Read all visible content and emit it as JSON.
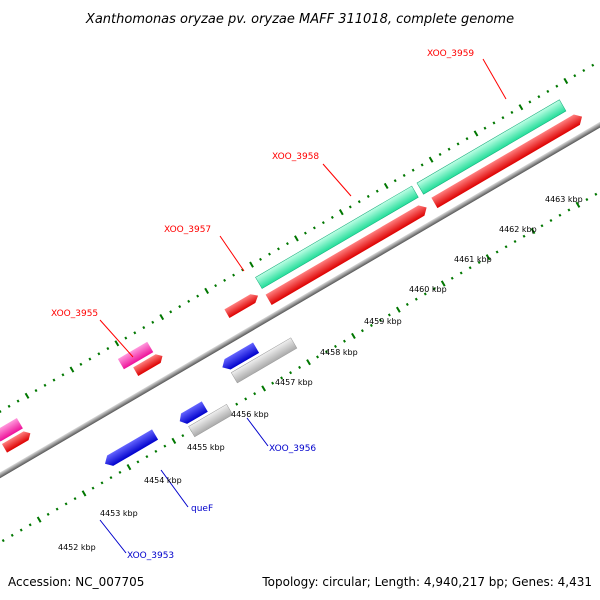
{
  "title": "Xanthomonas oryzae pv. oryzae MAFF 311018, complete genome",
  "footer": {
    "accession": "Accession: NC_007705",
    "topology": "Topology: circular; Length: 4,940,217 bp; Genes: 4,431"
  },
  "scale_ticks": [
    {
      "label": "4452 kbp",
      "kbp": 4452
    },
    {
      "label": "4453 kbp",
      "kbp": 4453
    },
    {
      "label": "4454 kbp",
      "kbp": 4454
    },
    {
      "label": "4455 kbp",
      "kbp": 4455
    },
    {
      "label": "4456 kbp",
      "kbp": 4456
    },
    {
      "label": "4457 kbp",
      "kbp": 4457
    },
    {
      "label": "4458 kbp",
      "kbp": 4458
    },
    {
      "label": "4459 kbp",
      "kbp": 4459
    },
    {
      "label": "4460 kbp",
      "kbp": 4460
    },
    {
      "label": "4461 kbp",
      "kbp": 4461
    },
    {
      "label": "4462 kbp",
      "kbp": 4462
    },
    {
      "label": "4463 kbp",
      "kbp": 4463
    }
  ],
  "gene_labels": [
    {
      "name": "XOO_3959",
      "strand": "forward",
      "color": "#ff0000"
    },
    {
      "name": "XOO_3958",
      "strand": "forward",
      "color": "#ff0000"
    },
    {
      "name": "XOO_3957",
      "strand": "forward",
      "color": "#ff0000"
    },
    {
      "name": "XOO_3955",
      "strand": "forward",
      "color": "#ff0000"
    },
    {
      "name": "XOO_3956",
      "strand": "reverse",
      "color": "#0000cc"
    },
    {
      "name": "queF",
      "strand": "reverse",
      "color": "#0000cc"
    },
    {
      "name": "XOO_3953",
      "strand": "reverse",
      "color": "#0000cc"
    }
  ],
  "colors": {
    "backbone": "#888888",
    "tick_marks": "#007700",
    "cds_forward": "#ff0000",
    "cds_reverse": "#0000ee",
    "gene_feature": "#33ee99",
    "rna_feature": "#ff33aa",
    "reverse_feature": "#bbbbbb"
  }
}
